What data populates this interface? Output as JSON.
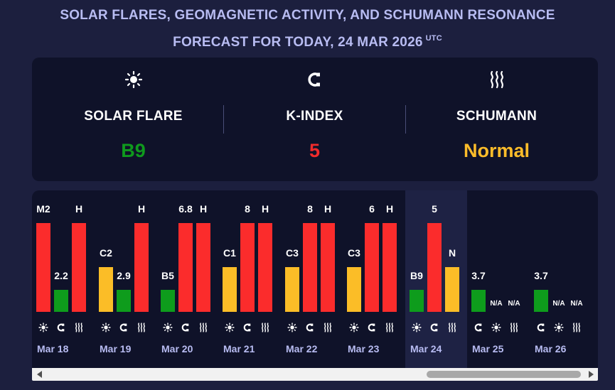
{
  "title_line1": "SOLAR FLARES, GEOMAGNETIC ACTIVITY, AND SCHUMANN RESONANCE",
  "title_line2": "FORECAST FOR TODAY, 24 MAR 2026",
  "title_suffix": "UTC",
  "summary": [
    {
      "key": "solar",
      "icon": "sun-icon",
      "label": "SOLAR FLARE",
      "value": "B9",
      "color": "#0f9a1d"
    },
    {
      "key": "kindex",
      "icon": "magnet-icon",
      "label": "K-INDEX",
      "value": "5",
      "color": "#f02b2b"
    },
    {
      "key": "schumann",
      "icon": "waves-icon",
      "label": "SCHUMANN",
      "value": "Normal",
      "color": "#fbbc2a"
    }
  ],
  "colors": {
    "red": "#fb2c2c",
    "green": "#0e9c1c",
    "yellow": "#fbbd27"
  },
  "days": [
    {
      "date": "Mar 18",
      "today": false,
      "bars": [
        {
          "type": "solar",
          "label": "M2",
          "level": 1.0,
          "color": "red"
        },
        {
          "type": "kindex",
          "label": "2.2",
          "level": 0.25,
          "color": "green"
        },
        {
          "type": "schumann",
          "label": "H",
          "level": 1.0,
          "color": "red"
        }
      ]
    },
    {
      "date": "Mar 19",
      "today": false,
      "bars": [
        {
          "type": "solar",
          "label": "C2",
          "level": 0.5,
          "color": "yellow"
        },
        {
          "type": "kindex",
          "label": "2.9",
          "level": 0.25,
          "color": "green"
        },
        {
          "type": "schumann",
          "label": "H",
          "level": 1.0,
          "color": "red"
        }
      ]
    },
    {
      "date": "Mar 20",
      "today": false,
      "bars": [
        {
          "type": "solar",
          "label": "B5",
          "level": 0.25,
          "color": "green"
        },
        {
          "type": "kindex",
          "label": "6.8",
          "level": 1.0,
          "color": "red"
        },
        {
          "type": "schumann",
          "label": "H",
          "level": 1.0,
          "color": "red"
        }
      ]
    },
    {
      "date": "Mar 21",
      "today": false,
      "bars": [
        {
          "type": "solar",
          "label": "C1",
          "level": 0.5,
          "color": "yellow"
        },
        {
          "type": "kindex",
          "label": "8",
          "level": 1.0,
          "color": "red"
        },
        {
          "type": "schumann",
          "label": "H",
          "level": 1.0,
          "color": "red"
        }
      ]
    },
    {
      "date": "Mar 22",
      "today": false,
      "bars": [
        {
          "type": "solar",
          "label": "C3",
          "level": 0.5,
          "color": "yellow"
        },
        {
          "type": "kindex",
          "label": "8",
          "level": 1.0,
          "color": "red"
        },
        {
          "type": "schumann",
          "label": "H",
          "level": 1.0,
          "color": "red"
        }
      ]
    },
    {
      "date": "Mar 23",
      "today": false,
      "bars": [
        {
          "type": "solar",
          "label": "C3",
          "level": 0.5,
          "color": "yellow"
        },
        {
          "type": "kindex",
          "label": "6",
          "level": 1.0,
          "color": "red"
        },
        {
          "type": "schumann",
          "label": "H",
          "level": 1.0,
          "color": "red"
        }
      ]
    },
    {
      "date": "Mar 24",
      "today": true,
      "bars": [
        {
          "type": "solar",
          "label": "B9",
          "level": 0.25,
          "color": "green"
        },
        {
          "type": "kindex",
          "label": "5",
          "level": 1.0,
          "color": "red"
        },
        {
          "type": "schumann",
          "label": "N",
          "level": 0.5,
          "color": "yellow"
        }
      ]
    },
    {
      "date": "Mar 25",
      "today": false,
      "bars": [
        {
          "type": "kindex",
          "label": "3.7",
          "level": 0.25,
          "color": "green"
        },
        {
          "type": "solar",
          "label": "N/A",
          "level": 0,
          "color": ""
        },
        {
          "type": "schumann",
          "label": "N/A",
          "level": 0,
          "color": ""
        }
      ]
    },
    {
      "date": "Mar 26",
      "today": false,
      "bars": [
        {
          "type": "kindex",
          "label": "3.7",
          "level": 0.25,
          "color": "green"
        },
        {
          "type": "solar",
          "label": "N/A",
          "level": 0,
          "color": ""
        },
        {
          "type": "schumann",
          "label": "N/A",
          "level": 0,
          "color": ""
        }
      ]
    }
  ]
}
